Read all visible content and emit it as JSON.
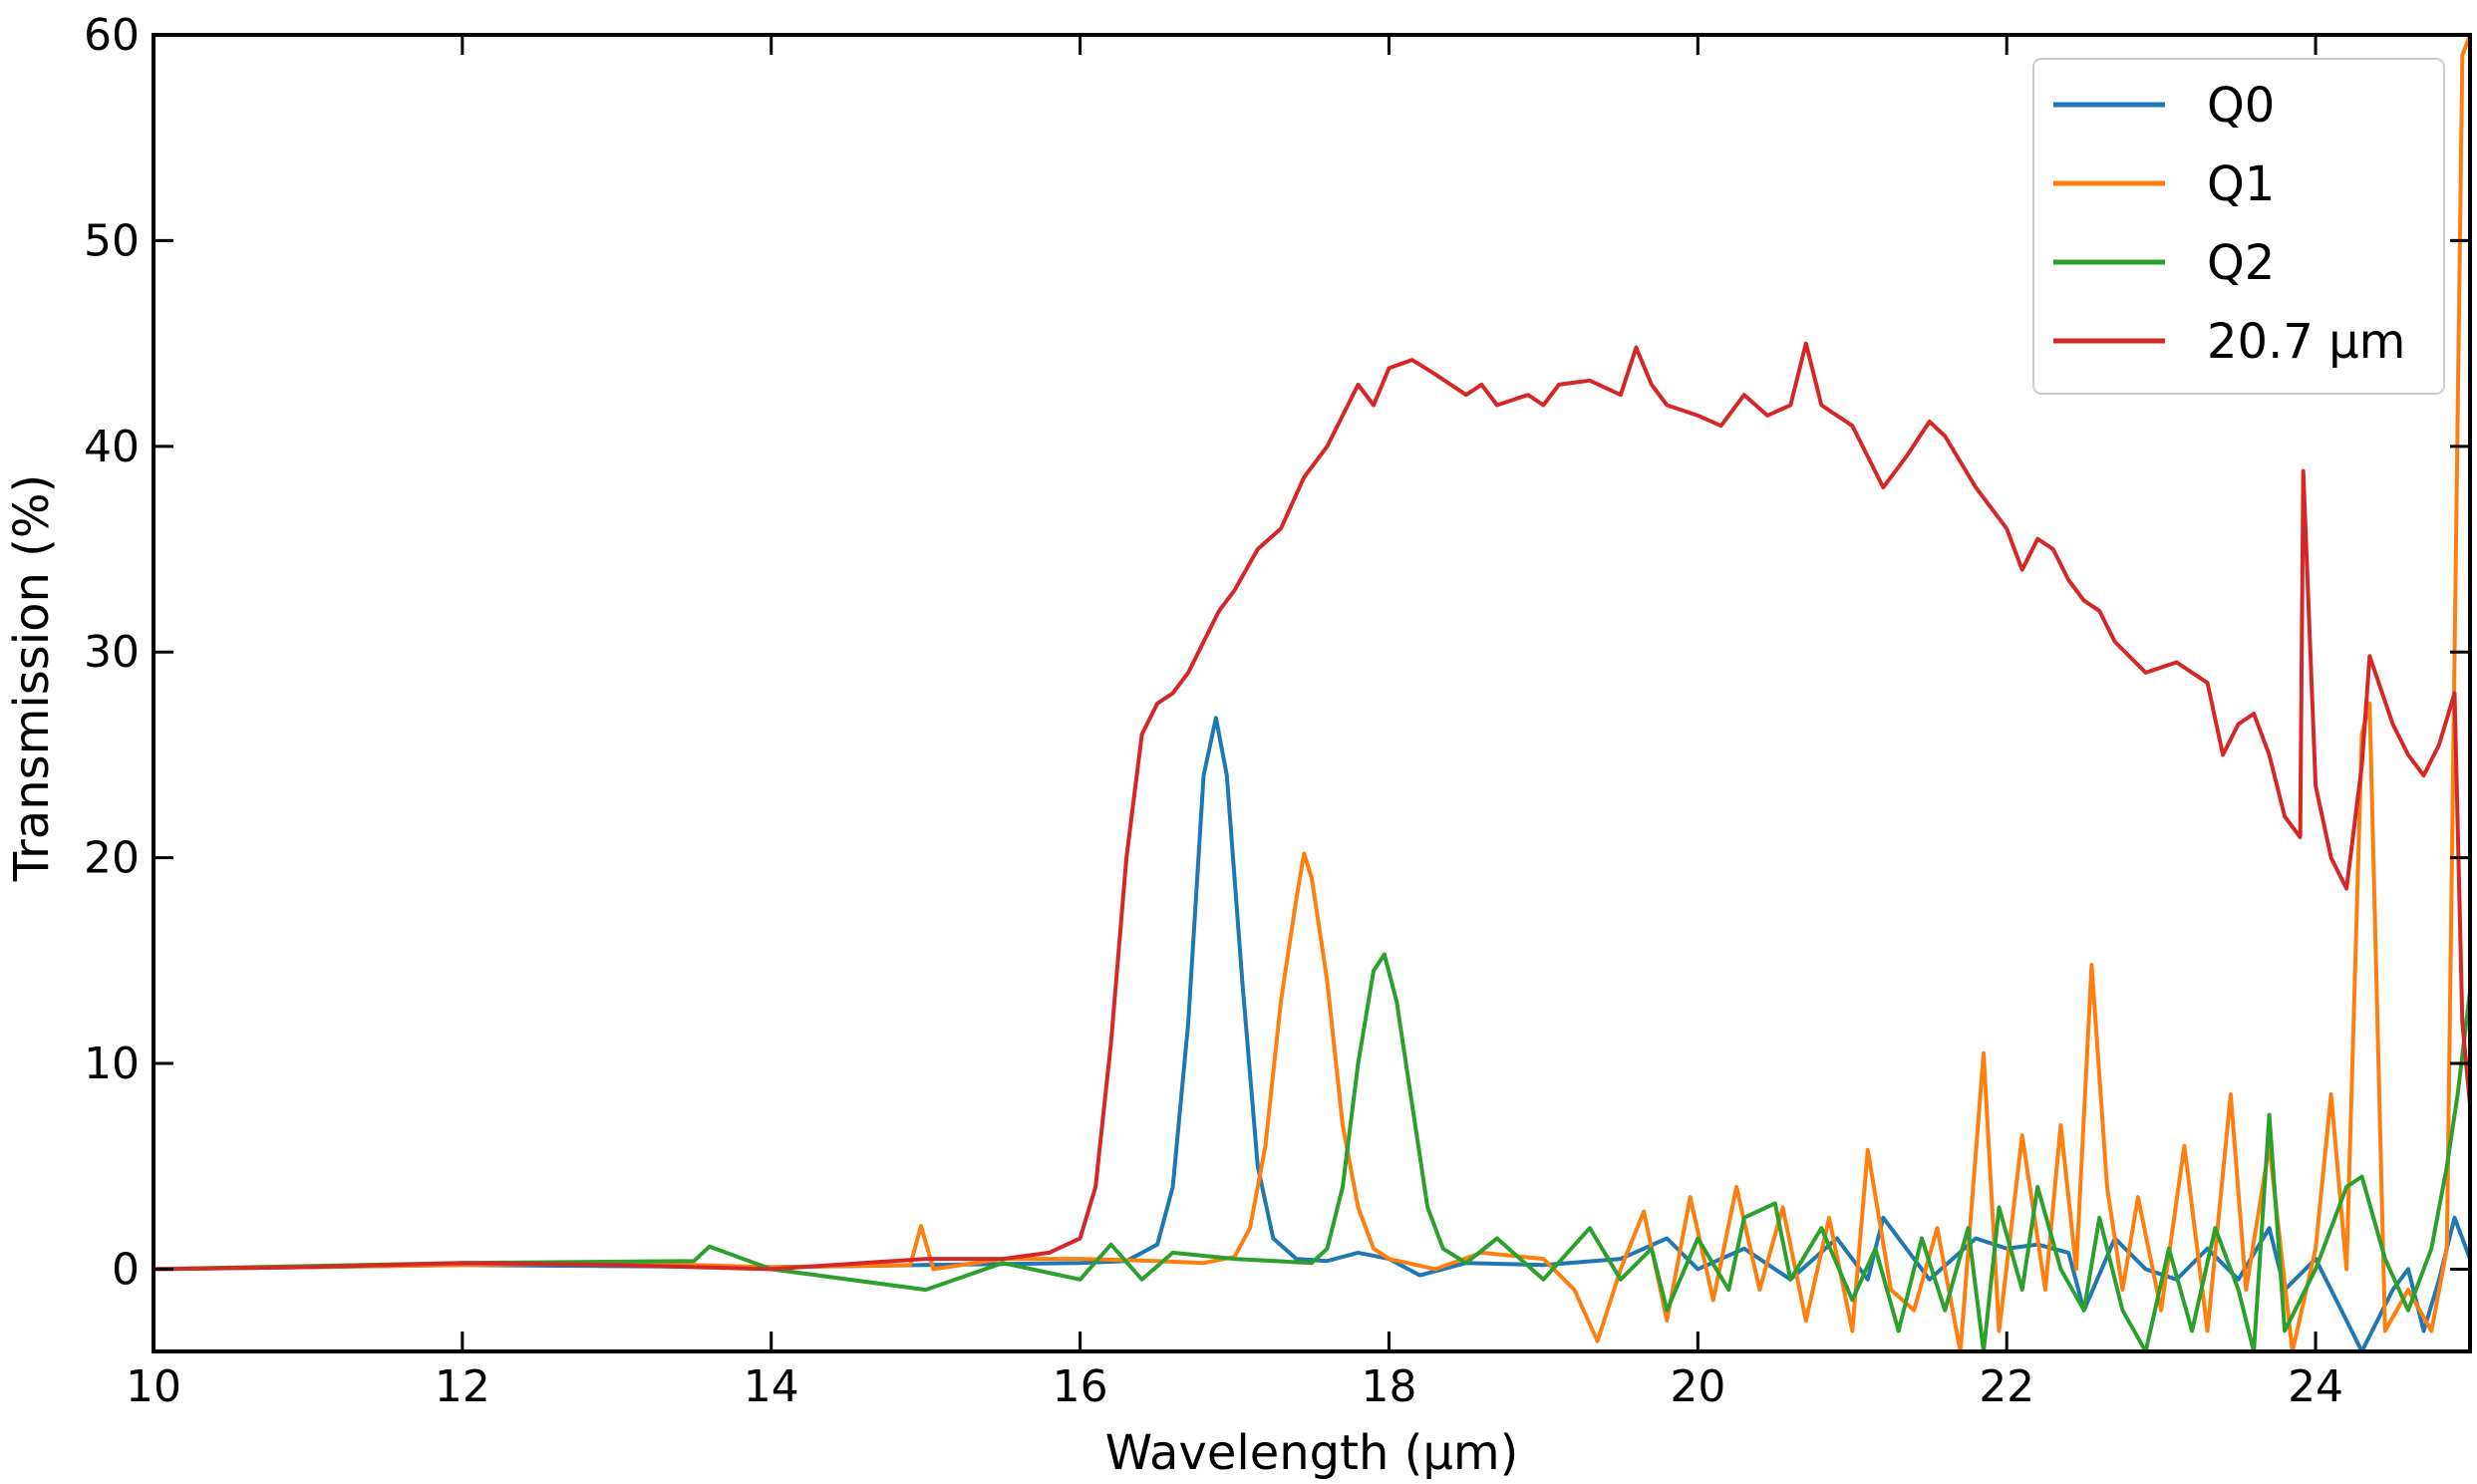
{
  "chart_data": {
    "type": "line",
    "xlabel": "Wavelength (μm)",
    "ylabel": "Transmission (%)",
    "xlim": [
      10,
      25
    ],
    "ylim": [
      -4,
      60
    ],
    "xticks": [
      10,
      12,
      14,
      16,
      18,
      20,
      22,
      24
    ],
    "yticks": [
      0,
      10,
      20,
      30,
      40,
      50,
      60
    ],
    "grid": false,
    "legend_position": "top-right",
    "series": [
      {
        "name": "Q0",
        "color": "#1f77b4",
        "points": [
          [
            10,
            0
          ],
          [
            12,
            0.2
          ],
          [
            14,
            0.1
          ],
          [
            15,
            0.2
          ],
          [
            16,
            0.3
          ],
          [
            16.3,
            0.4
          ],
          [
            16.5,
            1.2
          ],
          [
            16.6,
            4
          ],
          [
            16.7,
            12
          ],
          [
            16.8,
            24
          ],
          [
            16.88,
            26.8
          ],
          [
            16.95,
            24
          ],
          [
            17.05,
            14
          ],
          [
            17.15,
            5
          ],
          [
            17.25,
            1.5
          ],
          [
            17.4,
            0.5
          ],
          [
            17.6,
            0.4
          ],
          [
            17.8,
            0.8
          ],
          [
            18,
            0.5
          ],
          [
            18.2,
            -0.3
          ],
          [
            18.5,
            0.3
          ],
          [
            19,
            0.2
          ],
          [
            19.5,
            0.5
          ],
          [
            19.8,
            1.5
          ],
          [
            20,
            0
          ],
          [
            20.3,
            1
          ],
          [
            20.6,
            -0.5
          ],
          [
            20.9,
            1.5
          ],
          [
            21.1,
            -0.5
          ],
          [
            21.2,
            2.5
          ],
          [
            21.5,
            -0.5
          ],
          [
            21.8,
            1.5
          ],
          [
            22,
            1
          ],
          [
            22.2,
            1.2
          ],
          [
            22.4,
            0.8
          ],
          [
            22.5,
            -2
          ],
          [
            22.7,
            1.5
          ],
          [
            22.9,
            0
          ],
          [
            23.1,
            -0.5
          ],
          [
            23.3,
            1
          ],
          [
            23.5,
            -0.5
          ],
          [
            23.7,
            2
          ],
          [
            23.8,
            -1
          ],
          [
            24,
            0.5
          ],
          [
            24.2,
            -2.5
          ],
          [
            24.3,
            -4
          ],
          [
            24.5,
            -1
          ],
          [
            24.6,
            0
          ],
          [
            24.7,
            -3
          ],
          [
            24.8,
            -0.5
          ],
          [
            24.9,
            2.5
          ],
          [
            25,
            0.5
          ]
        ]
      },
      {
        "name": "Q1",
        "color": "#ff7f0e",
        "points": [
          [
            10,
            0
          ],
          [
            12,
            0.2
          ],
          [
            13,
            0.3
          ],
          [
            14,
            0.1
          ],
          [
            14.9,
            0.2
          ],
          [
            14.97,
            2.1
          ],
          [
            15.05,
            0
          ],
          [
            15.5,
            0.5
          ],
          [
            16,
            0.5
          ],
          [
            16.5,
            0.4
          ],
          [
            16.8,
            0.3
          ],
          [
            17,
            0.6
          ],
          [
            17.1,
            2
          ],
          [
            17.2,
            6
          ],
          [
            17.3,
            13
          ],
          [
            17.4,
            18
          ],
          [
            17.45,
            20.2
          ],
          [
            17.5,
            19
          ],
          [
            17.6,
            14
          ],
          [
            17.7,
            7
          ],
          [
            17.8,
            3
          ],
          [
            17.9,
            1
          ],
          [
            18,
            0.5
          ],
          [
            18.3,
            0
          ],
          [
            18.6,
            0.8
          ],
          [
            19,
            0.5
          ],
          [
            19.2,
            -1
          ],
          [
            19.35,
            -3.5
          ],
          [
            19.5,
            0
          ],
          [
            19.65,
            2.8
          ],
          [
            19.8,
            -2.5
          ],
          [
            19.95,
            3.5
          ],
          [
            20.1,
            -1.5
          ],
          [
            20.25,
            4
          ],
          [
            20.4,
            -1
          ],
          [
            20.55,
            3
          ],
          [
            20.7,
            -2.5
          ],
          [
            20.85,
            2.5
          ],
          [
            21,
            -3
          ],
          [
            21.1,
            5.8
          ],
          [
            21.25,
            -1
          ],
          [
            21.4,
            -2
          ],
          [
            21.55,
            2
          ],
          [
            21.7,
            -4
          ],
          [
            21.85,
            10.5
          ],
          [
            21.95,
            -3
          ],
          [
            22.1,
            6.5
          ],
          [
            22.25,
            -1
          ],
          [
            22.35,
            7
          ],
          [
            22.45,
            0
          ],
          [
            22.55,
            14.8
          ],
          [
            22.65,
            4
          ],
          [
            22.75,
            -1
          ],
          [
            22.85,
            3.5
          ],
          [
            23,
            -2
          ],
          [
            23.15,
            6
          ],
          [
            23.3,
            -3
          ],
          [
            23.45,
            8.5
          ],
          [
            23.55,
            -1
          ],
          [
            23.7,
            6
          ],
          [
            23.85,
            -4
          ],
          [
            24,
            1
          ],
          [
            24.1,
            8.5
          ],
          [
            24.2,
            0
          ],
          [
            24.3,
            26
          ],
          [
            24.35,
            27.5
          ],
          [
            24.45,
            -3
          ],
          [
            24.6,
            -1
          ],
          [
            24.75,
            -3
          ],
          [
            24.85,
            1
          ],
          [
            24.95,
            59
          ],
          [
            25,
            60
          ]
        ]
      },
      {
        "name": "Q2",
        "color": "#2ca02c",
        "points": [
          [
            10,
            0
          ],
          [
            12,
            0.3
          ],
          [
            13.5,
            0.4
          ],
          [
            13.6,
            1.1
          ],
          [
            14,
            0
          ],
          [
            15,
            -1
          ],
          [
            15.5,
            0.3
          ],
          [
            16,
            -0.5
          ],
          [
            16.2,
            1.2
          ],
          [
            16.4,
            -0.5
          ],
          [
            16.6,
            0.8
          ],
          [
            17,
            0.5
          ],
          [
            17.5,
            0.3
          ],
          [
            17.6,
            1
          ],
          [
            17.7,
            4
          ],
          [
            17.8,
            10
          ],
          [
            17.9,
            14.5
          ],
          [
            17.97,
            15.3
          ],
          [
            18.05,
            13
          ],
          [
            18.15,
            8
          ],
          [
            18.25,
            3
          ],
          [
            18.35,
            1
          ],
          [
            18.5,
            0.3
          ],
          [
            18.7,
            1.5
          ],
          [
            19,
            -0.5
          ],
          [
            19.3,
            2
          ],
          [
            19.5,
            -0.5
          ],
          [
            19.7,
            1
          ],
          [
            19.8,
            -2
          ],
          [
            20,
            1.5
          ],
          [
            20.2,
            -1
          ],
          [
            20.3,
            2.5
          ],
          [
            20.5,
            3.2
          ],
          [
            20.6,
            -0.5
          ],
          [
            20.8,
            2
          ],
          [
            21,
            -1.5
          ],
          [
            21.15,
            1
          ],
          [
            21.3,
            -3
          ],
          [
            21.45,
            1.5
          ],
          [
            21.6,
            -2
          ],
          [
            21.75,
            2
          ],
          [
            21.85,
            -4
          ],
          [
            21.95,
            3
          ],
          [
            22.1,
            -1
          ],
          [
            22.2,
            4
          ],
          [
            22.35,
            0
          ],
          [
            22.5,
            -2
          ],
          [
            22.6,
            2.5
          ],
          [
            22.75,
            -2
          ],
          [
            22.9,
            -4
          ],
          [
            23.05,
            1
          ],
          [
            23.2,
            -3
          ],
          [
            23.35,
            2
          ],
          [
            23.5,
            -1
          ],
          [
            23.6,
            -4
          ],
          [
            23.7,
            7.5
          ],
          [
            23.8,
            -3
          ],
          [
            24,
            0
          ],
          [
            24.2,
            4
          ],
          [
            24.3,
            4.5
          ],
          [
            24.45,
            0.5
          ],
          [
            24.6,
            -2
          ],
          [
            24.75,
            1
          ],
          [
            24.85,
            5
          ],
          [
            24.92,
            8.5
          ],
          [
            25,
            13.5
          ]
        ]
      },
      {
        "name": "20.7 μm",
        "color": "#d62728",
        "points": [
          [
            10,
            0
          ],
          [
            11,
            0.1
          ],
          [
            12,
            0.3
          ],
          [
            13,
            0.2
          ],
          [
            14,
            0
          ],
          [
            15,
            0.5
          ],
          [
            15.5,
            0.5
          ],
          [
            15.8,
            0.8
          ],
          [
            16,
            1.5
          ],
          [
            16.1,
            4
          ],
          [
            16.2,
            11
          ],
          [
            16.3,
            20
          ],
          [
            16.4,
            26
          ],
          [
            16.5,
            27.5
          ],
          [
            16.6,
            28
          ],
          [
            16.7,
            29
          ],
          [
            16.8,
            30.5
          ],
          [
            16.9,
            32
          ],
          [
            17,
            33
          ],
          [
            17.15,
            35
          ],
          [
            17.3,
            36
          ],
          [
            17.45,
            38.5
          ],
          [
            17.6,
            40
          ],
          [
            17.7,
            41.5
          ],
          [
            17.8,
            43
          ],
          [
            17.9,
            42
          ],
          [
            18,
            43.8
          ],
          [
            18.15,
            44.2
          ],
          [
            18.3,
            43.5
          ],
          [
            18.5,
            42.5
          ],
          [
            18.6,
            43
          ],
          [
            18.7,
            42
          ],
          [
            18.9,
            42.5
          ],
          [
            19,
            42
          ],
          [
            19.1,
            43
          ],
          [
            19.3,
            43.2
          ],
          [
            19.5,
            42.5
          ],
          [
            19.6,
            44.8
          ],
          [
            19.7,
            43
          ],
          [
            19.8,
            42
          ],
          [
            20,
            41.5
          ],
          [
            20.15,
            41
          ],
          [
            20.3,
            42.5
          ],
          [
            20.45,
            41.5
          ],
          [
            20.6,
            42
          ],
          [
            20.7,
            45
          ],
          [
            20.8,
            42
          ],
          [
            21,
            41
          ],
          [
            21.1,
            39.5
          ],
          [
            21.2,
            38
          ],
          [
            21.35,
            39.5
          ],
          [
            21.5,
            41.2
          ],
          [
            21.6,
            40.5
          ],
          [
            21.8,
            38
          ],
          [
            22,
            36
          ],
          [
            22.1,
            34
          ],
          [
            22.2,
            35.5
          ],
          [
            22.3,
            35
          ],
          [
            22.4,
            33.5
          ],
          [
            22.5,
            32.5
          ],
          [
            22.6,
            32
          ],
          [
            22.7,
            30.5
          ],
          [
            22.9,
            29
          ],
          [
            23.1,
            29.5
          ],
          [
            23.3,
            28.5
          ],
          [
            23.4,
            25
          ],
          [
            23.5,
            26.5
          ],
          [
            23.6,
            27
          ],
          [
            23.7,
            25
          ],
          [
            23.8,
            22
          ],
          [
            23.9,
            21
          ],
          [
            23.92,
            38.8
          ],
          [
            24,
            23.5
          ],
          [
            24.1,
            20
          ],
          [
            24.2,
            18.5
          ],
          [
            24.3,
            24.5
          ],
          [
            24.35,
            29.8
          ],
          [
            24.5,
            26.5
          ],
          [
            24.6,
            25
          ],
          [
            24.7,
            24
          ],
          [
            24.8,
            25.5
          ],
          [
            24.9,
            28
          ],
          [
            24.95,
            12
          ],
          [
            25,
            8
          ]
        ]
      }
    ]
  }
}
